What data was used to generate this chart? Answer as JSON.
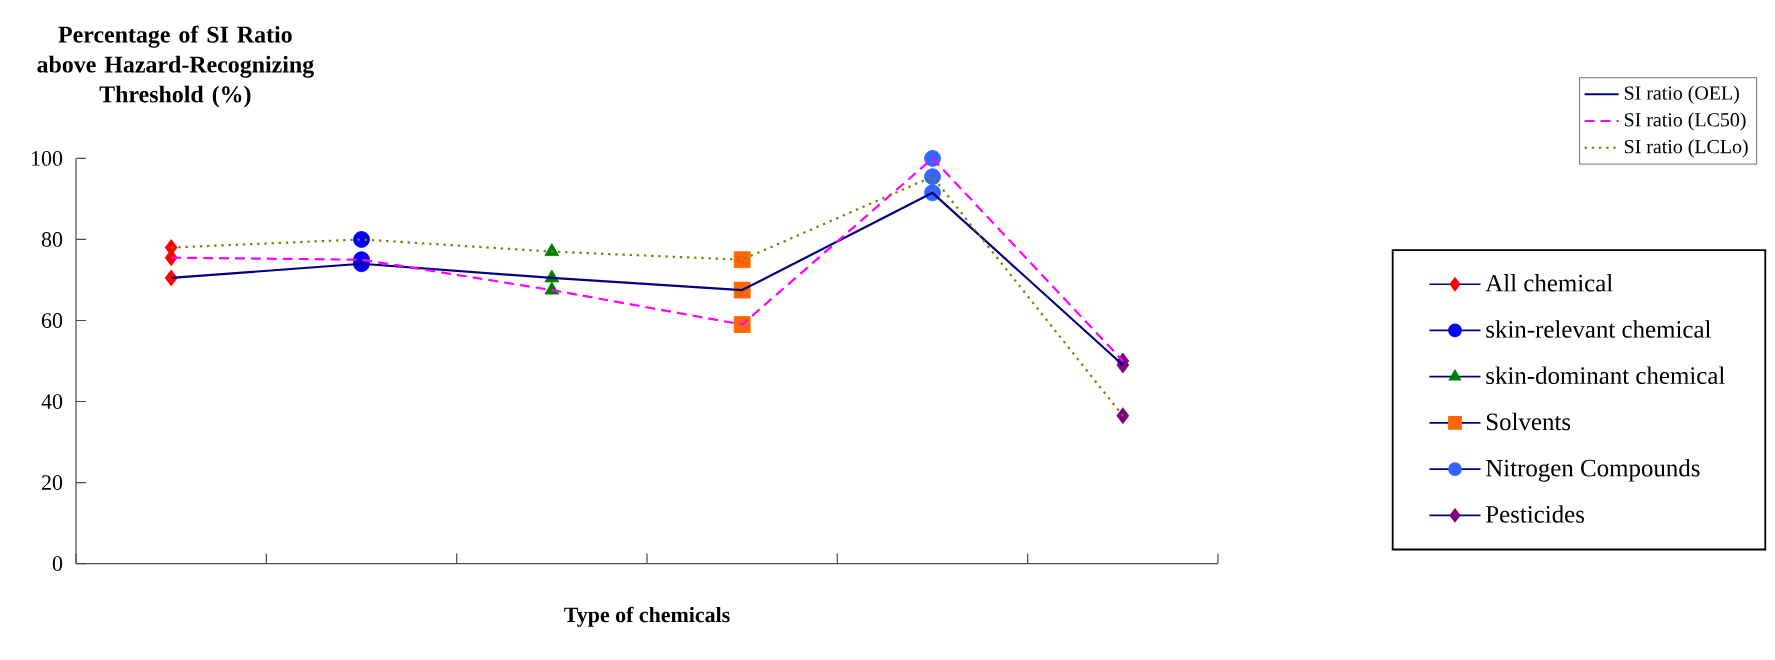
{
  "chart_data": {
    "type": "line",
    "ylabel": "Percentage of SI Ratio above Hazard-Recognizing Threshold (%)",
    "xlabel": "Type of chemicals",
    "categories": [
      null,
      null,
      null,
      null,
      null,
      null
    ],
    "ylim": [
      0,
      100
    ],
    "yticks": [
      0,
      20,
      40,
      60,
      80,
      100
    ],
    "tick_labels": "y",
    "legend": "right",
    "series": [
      {
        "name": "SI ratio (OEL)",
        "color": "#000080",
        "line_style": "solid",
        "values": [
          70.5,
          74,
          70.5,
          67.5,
          91.5,
          49
        ]
      },
      {
        "name": "SI ratio (LC50)",
        "color": "#ff00ff",
        "line_style": "dashed",
        "values": [
          75.5,
          75,
          67.5,
          59,
          100,
          50
        ]
      },
      {
        "name": "SI ratio (LCLo)",
        "color": "#808000",
        "line_style": "dotted",
        "values": [
          78,
          80,
          77,
          75,
          95.5,
          36.5
        ]
      },
      {
        "type": "scatter",
        "name": "All chemical",
        "color": "#ff0000",
        "marker": "diamond",
        "values": [
          70.5,
          null,
          null,
          null,
          null,
          null
        ]
      },
      {
        "type": "scatter",
        "color": "#ff0000",
        "marker": "diamond",
        "values": [
          75.5,
          null,
          null,
          null,
          null,
          null
        ]
      },
      {
        "type": "scatter",
        "color": "#ff0000",
        "marker": "diamond",
        "values": [
          78,
          null,
          null,
          null,
          null,
          null
        ]
      },
      {
        "type": "scatter",
        "name": "skin-relevant chemical",
        "color": "#0000ff",
        "marker": "circle",
        "values": [
          null,
          74,
          null,
          null,
          null,
          null
        ]
      },
      {
        "type": "scatter",
        "color": "#0000ff",
        "marker": "circle",
        "values": [
          null,
          75,
          null,
          null,
          null,
          null
        ]
      },
      {
        "type": "scatter",
        "color": "#0000ff",
        "marker": "circle",
        "values": [
          null,
          80,
          null,
          null,
          null,
          null
        ]
      },
      {
        "type": "scatter",
        "name": "skin-dominant chemical",
        "color": "#008000",
        "marker": "triangle",
        "values": [
          null,
          null,
          70.5,
          null,
          null,
          null
        ]
      },
      {
        "type": "scatter",
        "color": "#008000",
        "marker": "triangle",
        "values": [
          null,
          null,
          67.5,
          null,
          null,
          null
        ]
      },
      {
        "type": "scatter",
        "color": "#008000",
        "marker": "triangle",
        "values": [
          null,
          null,
          77,
          null,
          null,
          null
        ]
      },
      {
        "type": "scatter",
        "name": "Solvents",
        "color": "#ff6600",
        "marker": "square",
        "values": [
          null,
          null,
          null,
          67.5,
          null,
          null
        ]
      },
      {
        "type": "scatter",
        "color": "#ff6600",
        "marker": "square",
        "values": [
          null,
          null,
          null,
          59,
          null,
          null
        ]
      },
      {
        "type": "scatter",
        "color": "#ff6600",
        "marker": "square",
        "values": [
          null,
          null,
          null,
          75,
          null,
          null
        ]
      },
      {
        "type": "scatter",
        "name": "Nitrogen Compounds",
        "color": "#3366ff",
        "marker": "circle",
        "values": [
          null,
          null,
          null,
          null,
          91.5,
          null
        ]
      },
      {
        "type": "scatter",
        "color": "#3366ff",
        "marker": "circle",
        "values": [
          null,
          null,
          null,
          null,
          100,
          null
        ]
      },
      {
        "type": "scatter",
        "color": "#3366ff",
        "marker": "circle",
        "values": [
          null,
          null,
          null,
          null,
          95.5,
          null
        ]
      },
      {
        "type": "scatter",
        "name": "Pesticides",
        "color": "#800080",
        "marker": "diamond",
        "values": [
          null,
          null,
          null,
          null,
          null,
          49
        ]
      },
      {
        "type": "scatter",
        "color": "#800080",
        "marker": "diamond",
        "values": [
          null,
          null,
          null,
          null,
          null,
          50
        ]
      },
      {
        "type": "scatter",
        "color": "#800080",
        "marker": "diamond",
        "values": [
          null,
          null,
          null,
          null,
          null,
          36.5
        ]
      }
    ]
  }
}
